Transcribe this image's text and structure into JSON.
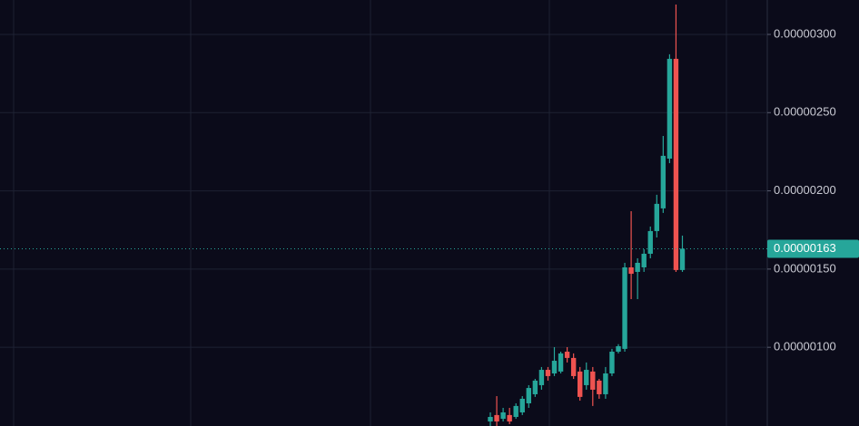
{
  "chart_data": {
    "type": "candlestick",
    "up_color": "#26a69a",
    "down_color": "#ef5350",
    "grid": true,
    "ylim": [
      4.97e-07,
      3.22e-06
    ],
    "yticks": [
      {
        "value": 1e-06,
        "label": "0.00000100"
      },
      {
        "value": 1.5e-06,
        "label": "0.00000150"
      },
      {
        "value": 2e-06,
        "label": "0.00000200"
      },
      {
        "value": 2.5e-06,
        "label": "0.00000250"
      },
      {
        "value": 3e-06,
        "label": "0.00000300"
      }
    ],
    "last_price": {
      "value": 1.63e-06,
      "label": "0.00000163"
    },
    "series": {
      "open": [
        5.26e-07,
        5.67e-07,
        5.43e-07,
        5.67e-07,
        5.55e-07,
        5.84e-07,
        6.42e-07,
        7e-07,
        7.58e-07,
        8.56e-07,
        8.33e-07,
        8.45e-07,
        9.72e-07,
        9.32e-07,
        8.45e-07,
        7.58e-07,
        8.45e-07,
        7.87e-07,
        7e-07,
        8.33e-07,
        9.72e-07,
        9.9e-07,
        1.511e-06,
        1.482e-06,
        1.511e-06,
        1.598e-06,
        1.743e-06,
        1.888e-06,
        2.206e-06,
        2.844e-06,
        1.494e-06
      ],
      "high": [
        5.84e-07,
        6.88e-07,
        6.13e-07,
        6.13e-07,
        6.42e-07,
        6.88e-07,
        7.58e-07,
        7.98e-07,
        8.74e-07,
        8.74e-07,
        1.001e-06,
        9.72e-07,
        1.001e-06,
        9.61e-07,
        8.74e-07,
        9.03e-07,
        8.74e-07,
        7.98e-07,
        8.74e-07,
        9.9e-07,
        1.02e-06,
        1.54e-06,
        1.87e-06,
        1.569e-06,
        1.627e-06,
        1.772e-06,
        1.975e-06,
        2.351e-06,
        2.873e-06,
        3.191e-06,
        1.714e-06
      ],
      "low": [
        4.97e-07,
        4.97e-07,
        5.26e-07,
        5.09e-07,
        5.43e-07,
        5.67e-07,
        6.13e-07,
        6.83e-07,
        7.29e-07,
        7.87e-07,
        8.16e-07,
        8.33e-07,
        9.03e-07,
        7.98e-07,
        6.59e-07,
        7.29e-07,
        6.25e-07,
        6.71e-07,
        6.71e-07,
        8.16e-07,
        9.61e-07,
        9.72e-07,
        1.308e-06,
        1.308e-06,
        1.482e-06,
        1.569e-06,
        1.702e-06,
        1.859e-06,
        2.177e-06,
        1.482e-06,
        1.482e-06
      ],
      "close": [
        5.55e-07,
        5.26e-07,
        5.84e-07,
        5.26e-07,
        6.25e-07,
        6.71e-07,
        7.4e-07,
        7.87e-07,
        8.56e-07,
        8.16e-07,
        9.14e-07,
        9.61e-07,
        9.32e-07,
        8.16e-07,
        6.83e-07,
        8.56e-07,
        7.29e-07,
        7e-07,
        8.33e-07,
        9.72e-07,
        1.007e-06,
        1.511e-06,
        1.47e-06,
        1.54e-06,
        1.598e-06,
        1.743e-06,
        1.917e-06,
        2.224e-06,
        2.844e-06,
        1.494e-06,
        1.63e-06
      ]
    }
  }
}
